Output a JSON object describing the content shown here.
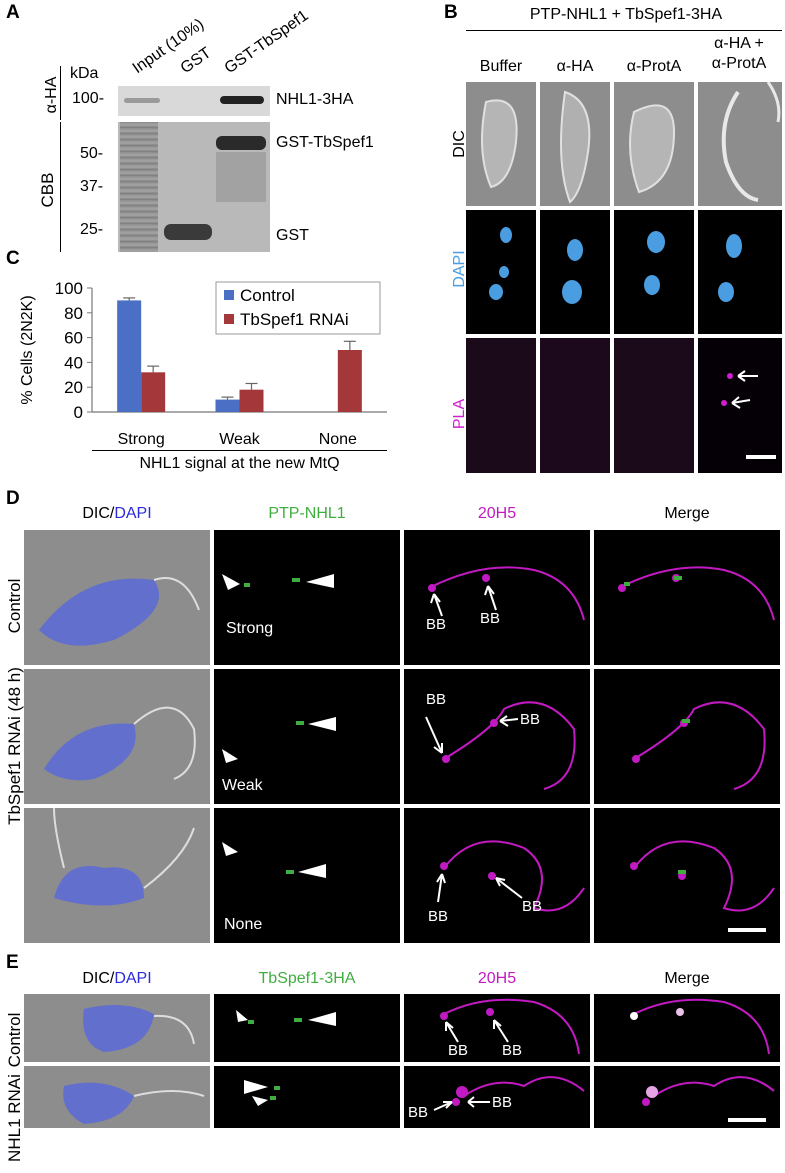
{
  "panelA": {
    "letter": "A",
    "side_labels": [
      "α-HA",
      "CBB"
    ],
    "kda_label": "kDa",
    "markers": [
      "100-",
      "50-",
      "37-",
      "25-"
    ],
    "lanes": [
      "Input (10%)",
      "GST",
      "GST-TbSpef1"
    ],
    "band_labels": [
      "NHL1-3HA",
      "GST-TbSpef1",
      "GST"
    ]
  },
  "panelB": {
    "letter": "B",
    "header": "PTP-NHL1 + TbSpef1-3HA",
    "columns": [
      "Buffer",
      "α-HA",
      "α-ProtA",
      "α-HA +\nα-ProtA"
    ],
    "rows": [
      "DIC",
      "DAPI",
      "PLA"
    ],
    "colors": {
      "dapi": "#4a9de0",
      "pla": "#d01fd0"
    }
  },
  "panelC": {
    "letter": "C",
    "xlabel": "NHL1 signal at the new MtQ",
    "chart_data": {
      "type": "bar",
      "categories": [
        "Strong",
        "Weak",
        "None"
      ],
      "series": [
        {
          "name": "Control",
          "values": [
            90,
            10,
            0
          ],
          "errors": [
            2,
            2,
            0
          ],
          "color": "#4a6fc4"
        },
        {
          "name": "TbSpef1 RNAi",
          "values": [
            32,
            18,
            50
          ],
          "errors": [
            5,
            5,
            7
          ],
          "color": "#a3373a"
        }
      ],
      "ylabel": "% Cells (2N2K)",
      "ylim": [
        0,
        100
      ],
      "yticks": [
        0,
        20,
        40,
        60,
        80,
        100
      ],
      "legend": "top-right"
    }
  },
  "panelD": {
    "letter": "D",
    "headers": {
      "dic": "DIC/",
      "dapi": "DAPI",
      "col2": "PTP-NHL1",
      "col3": "20H5",
      "col4": "Merge"
    },
    "row_labels": [
      "Control",
      "TbSpef1 RNAi (48 h)"
    ],
    "signal_labels": [
      "Strong",
      "Weak",
      "None"
    ],
    "bb": "BB"
  },
  "panelE": {
    "letter": "E",
    "headers": {
      "dic": "DIC/",
      "dapi": "DAPI",
      "col2": "TbSpef1-3HA",
      "col3": "20H5",
      "col4": "Merge"
    },
    "row_labels": [
      "Control",
      "NHL1 RNAi"
    ],
    "bb": "BB"
  },
  "colors": {
    "green": "#3fae3f",
    "magenta": "#c21ac2",
    "blue_text": "#2b2bd8"
  }
}
